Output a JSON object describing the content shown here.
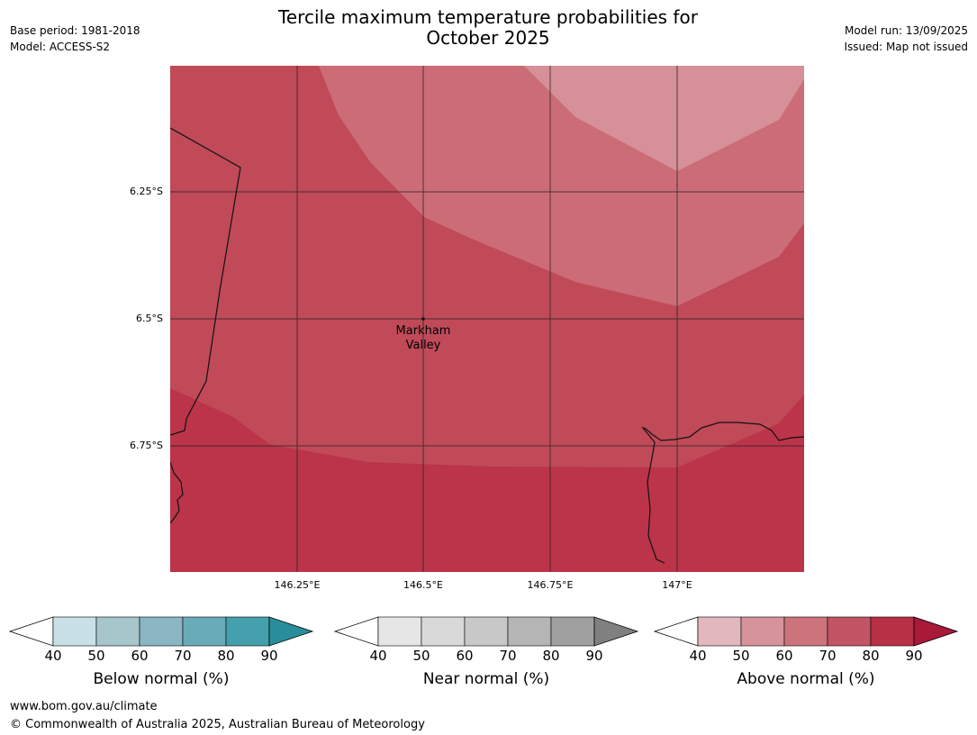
{
  "title": {
    "line1": "Tercile maximum temperature probabilities for",
    "line2": "October 2025"
  },
  "meta_left": {
    "base_period": "Base period: 1981-2018",
    "model": "Model: ACCESS-S2"
  },
  "meta_right": {
    "model_run": "Model run: 13/09/2025",
    "issued": "Issued: Map not issued"
  },
  "map": {
    "lat_labels": [
      "6.25°S",
      "6.5°S",
      "6.75°S"
    ],
    "lon_labels": [
      "146.25°E",
      "146.5°E",
      "146.75°E",
      "147°E"
    ],
    "place": {
      "line1": "Markham",
      "line2": "Valley"
    },
    "colors": {
      "p90": "#bb3449",
      "p80": "#c04a58",
      "p70": "#cc6c77",
      "p60": "#d69097",
      "grid": "#222222",
      "coast": "#111111"
    }
  },
  "colorbars": [
    {
      "label": "Below normal (%)",
      "ticks": [
        "40",
        "50",
        "60",
        "70",
        "80",
        "90"
      ],
      "colors": [
        "#c8e0e6",
        "#a6c6cc",
        "#8ab5c2",
        "#6aabb9",
        "#45a0ad",
        "#2a8d9c"
      ]
    },
    {
      "label": "Near normal (%)",
      "ticks": [
        "40",
        "50",
        "60",
        "70",
        "80",
        "90"
      ],
      "colors": [
        "#e6e6e6",
        "#d9d9d9",
        "#c8c8c8",
        "#b5b5b5",
        "#a0a0a0",
        "#808080"
      ]
    },
    {
      "label": "Above normal (%)",
      "ticks": [
        "40",
        "50",
        "60",
        "70",
        "80",
        "90"
      ],
      "colors": [
        "#e2b7bd",
        "#d6939b",
        "#cc737c",
        "#c25465",
        "#b83046",
        "#a8193a"
      ]
    }
  ],
  "footer": {
    "url": "www.bom.gov.au/climate",
    "copyright": "© Commonwealth of Australia 2025, Australian Bureau of Meteorology"
  }
}
